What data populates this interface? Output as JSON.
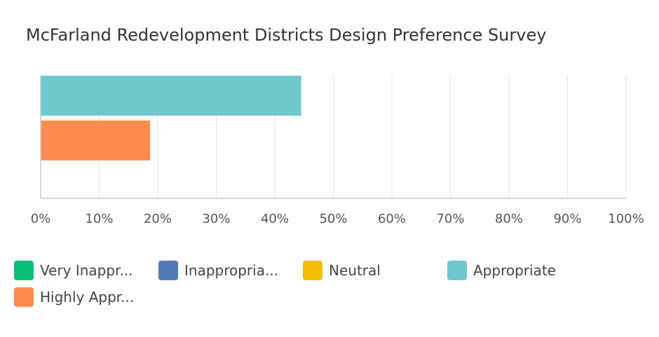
{
  "chart_data": {
    "type": "bar",
    "orientation": "horizontal",
    "title": "McFarland Redevelopment Districts Design Preference Survey",
    "xlim": [
      0,
      100
    ],
    "x_ticks": [
      "0%",
      "10%",
      "20%",
      "30%",
      "40%",
      "50%",
      "60%",
      "70%",
      "80%",
      "90%",
      "100%"
    ],
    "grid": true,
    "legend_position": "bottom",
    "series": [
      {
        "name": "Very Inappr...",
        "value": 0,
        "color": "#0DBE7A"
      },
      {
        "name": "Inappropria...",
        "value": 0,
        "color": "#5079B4"
      },
      {
        "name": "Neutral",
        "value": 0,
        "color": "#F5BE00"
      },
      {
        "name": "Appropriate",
        "value": 44.5,
        "color": "#6FC8CC"
      },
      {
        "name": "Highly Appr...",
        "value": 18.7,
        "color": "#FF8B50"
      }
    ]
  }
}
